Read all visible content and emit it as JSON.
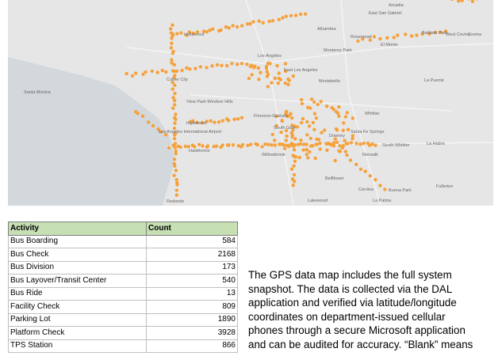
{
  "map": {
    "labels": [
      "Arcadia",
      "East San Gabriel",
      "Alhambra",
      "Rosemead",
      "El Monte",
      "Baldwin Park",
      "West Covina",
      "Covina",
      "Hollywood",
      "Los Angeles",
      "East Los Angeles",
      "Monterey Park",
      "Montebello",
      "Culver City",
      "Santa Monica",
      "View Park-Windsor Hills",
      "Inglewood",
      "Florence-Graham",
      "South Gate",
      "Downey",
      "Whittier",
      "South Whittier",
      "Santa Fe Springs",
      "Norwalk",
      "La Habra",
      "Hawthorne",
      "Willowbrook",
      "Bellflower",
      "Cerritos",
      "Buena Park",
      "Fullerton",
      "Lakewood",
      "La Palma",
      "Redondo",
      "La Puente",
      "Los Angeles International Airport"
    ]
  },
  "table": {
    "header": [
      "Activity",
      "Count"
    ],
    "rows": [
      [
        "Bus Boarding",
        584
      ],
      [
        "Bus Check",
        2168
      ],
      [
        "Bus Division",
        173
      ],
      [
        "Bus Layover/Transit Center",
        540
      ],
      [
        "Bus Ride",
        13
      ],
      [
        "Facility Check",
        809
      ],
      [
        "Parking Lot",
        1890
      ],
      [
        "Platform Check",
        3928
      ],
      [
        "TPS Station",
        866
      ]
    ]
  },
  "paragraph": [
    "The GPS data map includes the full system",
    "snapshot. The data is collected via the DAL",
    "application and verified via latitude/longitude",
    "coordinates on department-issued cellular",
    "phones through a secure Microsoft application",
    "and can be audited for accuracy. “Blank” means"
  ]
}
